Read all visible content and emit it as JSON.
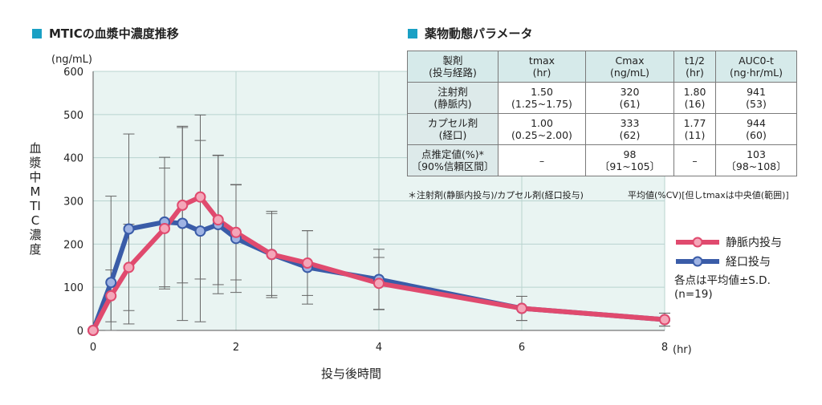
{
  "chart_title": "MTICの血漿中濃度推移",
  "table_title": "薬物動態パラメータ",
  "chart_data": {
    "type": "line",
    "y_unit": "(ng/mL)",
    "x_unit": "(hr)",
    "ylabel": "血漿中MTIC濃度",
    "xlabel": "投与後時間",
    "ylim": [
      0,
      600
    ],
    "xlim": [
      0,
      8
    ],
    "y_ticks": [
      0,
      100,
      200,
      300,
      400,
      500,
      600
    ],
    "x_ticks": [
      0,
      2,
      4,
      6,
      8
    ],
    "grid": true,
    "legend_position": "right",
    "series": [
      {
        "name": "静脈内投与",
        "color": "#e04a6e",
        "x": [
          0,
          0.25,
          0.5,
          1.0,
          1.25,
          1.5,
          1.75,
          2.0,
          2.5,
          3.0,
          4.0,
          6.0,
          8.0
        ],
        "y": [
          0,
          80,
          146,
          236,
          290,
          309,
          256,
          227,
          176,
          156,
          109,
          51,
          25
        ],
        "sd": [
          0,
          60,
          100,
          140,
          180,
          190,
          150,
          110,
          95,
          75,
          60,
          28,
          15
        ]
      },
      {
        "name": "経口投与",
        "color": "#3a5ca8",
        "x": [
          0,
          0.25,
          0.5,
          1.0,
          1.25,
          1.5,
          1.75,
          2.0,
          2.5,
          3.0,
          4.0,
          6.0,
          8.0
        ],
        "y": [
          0,
          111,
          235,
          251,
          248,
          230,
          245,
          213,
          176,
          146,
          118,
          51,
          25
        ],
        "sd": [
          0,
          200,
          220,
          150,
          225,
          210,
          160,
          125,
          100,
          85,
          70,
          28,
          15
        ]
      }
    ],
    "note": "各点は平均値±S.D.",
    "n": "(n=19)"
  },
  "table": {
    "headers": [
      "製剤\n(投与経路)",
      "tmax\n(hr)",
      "Cmax\n(ng/mL)",
      "t1/2\n(hr)",
      "AUC0-t\n(ng·hr/mL)"
    ],
    "rows": [
      [
        "注射剤\n(静脈内)",
        "1.50\n(1.25~1.75)",
        "320\n(61)",
        "1.80\n(16)",
        "941\n(53)"
      ],
      [
        "カプセル剤\n(経口)",
        "1.00\n(0.25~2.00)",
        "333\n(62)",
        "1.77\n(11)",
        "944\n(60)"
      ],
      [
        "点推定値(%)*\n〔90%信頼区間〕",
        "–",
        "98\n〔91~105〕",
        "–",
        "103\n〔98~108〕"
      ]
    ],
    "footnote_left": "＊注射剤(静脈内投与)/カプセル剤(経口投与)",
    "footnote_right": "平均値(%CV)[但しtmaxは中央値(範囲)]"
  }
}
